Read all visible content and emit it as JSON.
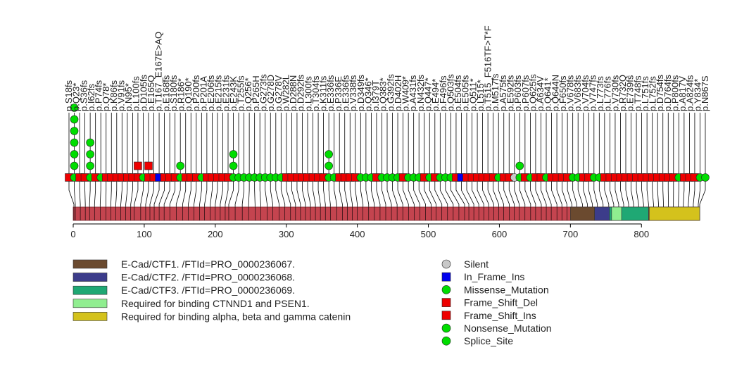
{
  "chart_data": {
    "type": "lollipop",
    "protein_length": 882,
    "x_ticks": [
      0,
      100,
      200,
      300,
      400,
      500,
      600,
      700,
      800
    ],
    "colors": {
      "backbone": "#c4444f",
      "Silent": "#c8c8c8",
      "In_Frame_Ins": "#0000ee",
      "Missense_Mutation": "#00dd00",
      "Frame_Shift_Del": "#ee0000",
      "Frame_Shift_Ins": "#ee0000",
      "Nonsense_Mutation": "#00dd00",
      "Splice_Site": "#00dd00"
    },
    "domains": [
      {
        "name": "E-Cad/CTF1. /FTId=PRO_0000236067.",
        "start": 700,
        "end": 734,
        "color": "#6b4a2f"
      },
      {
        "name": "E-Cad/CTF2. /FTId=PRO_0000236068.",
        "start": 734,
        "end": 755,
        "color": "#3c3c8a"
      },
      {
        "name": "E-Cad/CTF3. /FTId=PRO_0000236069.",
        "start": 755,
        "end": 810,
        "color": "#1fa874"
      },
      {
        "name": "Required for binding CTNND1 and PSEN1.",
        "start": 758,
        "end": 772,
        "color": "#90ee90"
      },
      {
        "name": "Required for binding alpha, beta and gamma catenin",
        "start": 811,
        "end": 882,
        "color": "#d4c21c"
      }
    ],
    "legend_types": [
      "Silent",
      "In_Frame_Ins",
      "Missense_Mutation",
      "Frame_Shift_Del",
      "Frame_Shift_Ins",
      "Nonsense_Mutation",
      "Splice_Site"
    ],
    "mutations": [
      {
        "label": "p.S18fs",
        "pos": 18
      },
      {
        "label": "p.Q23*",
        "pos": 23
      },
      {
        "label": "p.S36fs",
        "pos": 36
      },
      {
        "label": "p.I62fs",
        "pos": 62
      },
      {
        "label": "p.P74fs",
        "pos": 74
      },
      {
        "label": "p.Q78*",
        "pos": 78
      },
      {
        "label": "p.K86fs",
        "pos": 86
      },
      {
        "label": "p.V91fs",
        "pos": 91
      },
      {
        "label": "p.N95*",
        "pos": 95
      },
      {
        "label": "p.L100fs",
        "pos": 100
      },
      {
        "label": "p.D105fs",
        "pos": 105
      },
      {
        "label": "p.E165Q",
        "pos": 165
      },
      {
        "label": "p.T167_E167E>AQ",
        "pos": 167
      },
      {
        "label": "p.E168fs",
        "pos": 168
      },
      {
        "label": "p.S180fs",
        "pos": 180
      },
      {
        "label": "p.R186*",
        "pos": 186
      },
      {
        "label": "p.Q190*",
        "pos": 190
      },
      {
        "label": "p.P200fs",
        "pos": 200
      },
      {
        "label": "p.P201A",
        "pos": 201
      },
      {
        "label": "p.E206fs",
        "pos": 206
      },
      {
        "label": "p.E215fs",
        "pos": 215
      },
      {
        "label": "p.E231fs",
        "pos": 231
      },
      {
        "label": "p.E243K",
        "pos": 243
      },
      {
        "label": "p.T255fs",
        "pos": 255
      },
      {
        "label": "p.Q256*",
        "pos": 256
      },
      {
        "label": "p.P265H",
        "pos": 265
      },
      {
        "label": "p.G273fs",
        "pos": 273
      },
      {
        "label": "p.G278D",
        "pos": 278
      },
      {
        "label": "p.G278V",
        "pos": 278
      },
      {
        "label": "p.W282L",
        "pos": 282
      },
      {
        "label": "p.D288N",
        "pos": 288
      },
      {
        "label": "p.D292fs",
        "pos": 292
      },
      {
        "label": "p.L300fs",
        "pos": 300
      },
      {
        "label": "p.T304fs",
        "pos": 304
      },
      {
        "label": "p.K311fs",
        "pos": 311
      },
      {
        "label": "p.E336fs",
        "pos": 336
      },
      {
        "label": "p.P336E",
        "pos": 336
      },
      {
        "label": "p.E336fs",
        "pos": 336
      },
      {
        "label": "p.V338fs",
        "pos": 338
      },
      {
        "label": "p.D349fs",
        "pos": 349
      },
      {
        "label": "p.Q346*",
        "pos": 346
      },
      {
        "label": "p.I379T",
        "pos": 379
      },
      {
        "label": "p.Q383*",
        "pos": 383
      },
      {
        "label": "p.G392fs",
        "pos": 392
      },
      {
        "label": "p.D402H",
        "pos": 402
      },
      {
        "label": "p.W409*",
        "pos": 409
      },
      {
        "label": "p.A431fs",
        "pos": 431
      },
      {
        "label": "p.N432fs",
        "pos": 432
      },
      {
        "label": "p.Q447*",
        "pos": 447
      },
      {
        "label": "p.E494*",
        "pos": 494
      },
      {
        "label": "p.F496fs",
        "pos": 496
      },
      {
        "label": "p.Q503fs",
        "pos": 503
      },
      {
        "label": "p.E504fs",
        "pos": 504
      },
      {
        "label": "p.E505fs",
        "pos": 505
      },
      {
        "label": "p.Q511*",
        "pos": 511
      },
      {
        "label": "p.L515*",
        "pos": 515
      },
      {
        "label": "p.T515_F516TF>T*F",
        "pos": 516
      },
      {
        "label": "p.M517fs",
        "pos": 517
      },
      {
        "label": "p.A575fs",
        "pos": 575
      },
      {
        "label": "p.E592fs",
        "pos": 592
      },
      {
        "label": "p.P603fs",
        "pos": 603
      },
      {
        "label": "p.P607fs",
        "pos": 607
      },
      {
        "label": "p.Q625fs",
        "pos": 625
      },
      {
        "label": "p.A634V",
        "pos": 634
      },
      {
        "label": "p.Q641*",
        "pos": 641
      },
      {
        "label": "p.Q644N",
        "pos": 644
      },
      {
        "label": "p.F650fs",
        "pos": 650
      },
      {
        "label": "p.V678fs",
        "pos": 678
      },
      {
        "label": "p.V683fs",
        "pos": 683
      },
      {
        "label": "p.V704fs",
        "pos": 704
      },
      {
        "label": "p.V747fs",
        "pos": 747
      },
      {
        "label": "p.L773fs",
        "pos": 773
      },
      {
        "label": "p.L776fs",
        "pos": 776
      },
      {
        "label": "p.V730fs",
        "pos": 730
      },
      {
        "label": "p.R732Q",
        "pos": 732
      },
      {
        "label": "p.E739fs",
        "pos": 739
      },
      {
        "label": "p.T748fs",
        "pos": 748
      },
      {
        "label": "p.L751fs",
        "pos": 751
      },
      {
        "label": "p.L752fs",
        "pos": 752
      },
      {
        "label": "p.D754fs",
        "pos": 754
      },
      {
        "label": "p.D764fs",
        "pos": 764
      },
      {
        "label": "p.P800fs",
        "pos": 800
      },
      {
        "label": "p.A817V",
        "pos": 817
      },
      {
        "label": "p.A824fs",
        "pos": 824
      },
      {
        "label": "p.Y834*",
        "pos": 834
      },
      {
        "label": "p.N867S",
        "pos": 867
      }
    ],
    "lollipops": [
      {
        "pos": 1,
        "type": "Frame_Shift_Del",
        "count": 1
      },
      {
        "pos": 3,
        "type": "Missense_Mutation",
        "count": 7
      },
      {
        "pos": 10,
        "type": "Frame_Shift_Del",
        "count": 1
      },
      {
        "pos": 17,
        "type": "Frame_Shift_Del",
        "count": 1
      },
      {
        "pos": 23,
        "type": "Missense_Mutation",
        "count": 4
      },
      {
        "pos": 30,
        "type": "Frame_Shift_Del",
        "count": 1
      },
      {
        "pos": 38,
        "type": "Nonsense_Mutation",
        "count": 1
      },
      {
        "pos": 46,
        "type": "Frame_Shift_Del",
        "count": 1
      },
      {
        "pos": 53,
        "type": "Frame_Shift_Del",
        "count": 1
      },
      {
        "pos": 60,
        "type": "Frame_Shift_Del",
        "count": 1
      },
      {
        "pos": 67,
        "type": "Frame_Shift_Del",
        "count": 1
      },
      {
        "pos": 74,
        "type": "Frame_Shift_Del",
        "count": 1
      },
      {
        "pos": 81,
        "type": "Frame_Shift_Del",
        "count": 1
      },
      {
        "pos": 86,
        "type": "Frame_Shift_Ins",
        "count": 2
      },
      {
        "pos": 95,
        "type": "Missense_Mutation",
        "count": 1
      },
      {
        "pos": 102,
        "type": "Frame_Shift_Ins",
        "count": 2
      },
      {
        "pos": 108,
        "type": "Frame_Shift_Del",
        "count": 1
      },
      {
        "pos": 114,
        "type": "In_Frame_Ins",
        "count": 1
      },
      {
        "pos": 121,
        "type": "Frame_Shift_Del",
        "count": 1
      },
      {
        "pos": 128,
        "type": "Frame_Shift_Del",
        "count": 1
      },
      {
        "pos": 136,
        "type": "Frame_Shift_Del",
        "count": 1
      },
      {
        "pos": 145,
        "type": "Missense_Mutation",
        "count": 2
      },
      {
        "pos": 154,
        "type": "Frame_Shift_Del",
        "count": 1
      },
      {
        "pos": 162,
        "type": "Frame_Shift_Del",
        "count": 1
      },
      {
        "pos": 170,
        "type": "Frame_Shift_Del",
        "count": 1
      },
      {
        "pos": 178,
        "type": "Missense_Mutation",
        "count": 1
      },
      {
        "pos": 185,
        "type": "Frame_Shift_Del",
        "count": 1
      },
      {
        "pos": 193,
        "type": "Frame_Shift_Del",
        "count": 1
      },
      {
        "pos": 200,
        "type": "Frame_Shift_Del",
        "count": 1
      },
      {
        "pos": 207,
        "type": "Frame_Shift_Del",
        "count": 1
      },
      {
        "pos": 214,
        "type": "Frame_Shift_Del",
        "count": 1
      },
      {
        "pos": 219,
        "type": "Missense_Mutation",
        "count": 3
      },
      {
        "pos": 228,
        "type": "Missense_Mutation",
        "count": 1
      },
      {
        "pos": 238,
        "type": "Missense_Mutation",
        "count": 1
      },
      {
        "pos": 247,
        "type": "Missense_Mutation",
        "count": 1
      },
      {
        "pos": 256,
        "type": "Missense_Mutation",
        "count": 1
      },
      {
        "pos": 264,
        "type": "Missense_Mutation",
        "count": 1
      },
      {
        "pos": 273,
        "type": "Missense_Mutation",
        "count": 1
      },
      {
        "pos": 281,
        "type": "Missense_Mutation",
        "count": 1
      },
      {
        "pos": 290,
        "type": "Missense_Mutation",
        "count": 1
      },
      {
        "pos": 298,
        "type": "Missense_Mutation",
        "count": 1
      },
      {
        "pos": 306,
        "type": "Frame_Shift_Del",
        "count": 1
      },
      {
        "pos": 313,
        "type": "Frame_Shift_Del",
        "count": 1
      },
      {
        "pos": 320,
        "type": "Frame_Shift_Del",
        "count": 1
      },
      {
        "pos": 327,
        "type": "Frame_Shift_Del",
        "count": 1
      },
      {
        "pos": 334,
        "type": "Frame_Shift_Del",
        "count": 1
      },
      {
        "pos": 341,
        "type": "Frame_Shift_Del",
        "count": 1
      },
      {
        "pos": 348,
        "type": "Frame_Shift_Del",
        "count": 1
      },
      {
        "pos": 355,
        "type": "Frame_Shift_Del",
        "count": 1
      },
      {
        "pos": 362,
        "type": "Missense_Mutation",
        "count": 3
      },
      {
        "pos": 371,
        "type": "Missense_Mutation",
        "count": 1
      },
      {
        "pos": 379,
        "type": "Frame_Shift_Del",
        "count": 1
      },
      {
        "pos": 386,
        "type": "Frame_Shift_Del",
        "count": 1
      },
      {
        "pos": 393,
        "type": "Frame_Shift_Del",
        "count": 1
      },
      {
        "pos": 400,
        "type": "Frame_Shift_Del",
        "count": 1
      },
      {
        "pos": 408,
        "type": "Missense_Mutation",
        "count": 1
      },
      {
        "pos": 416,
        "type": "Missense_Mutation",
        "count": 1
      },
      {
        "pos": 424,
        "type": "Missense_Mutation",
        "count": 1
      },
      {
        "pos": 432,
        "type": "Frame_Shift_Del",
        "count": 1
      },
      {
        "pos": 440,
        "type": "Missense_Mutation",
        "count": 1
      },
      {
        "pos": 448,
        "type": "Missense_Mutation",
        "count": 1
      },
      {
        "pos": 456,
        "type": "Missense_Mutation",
        "count": 1
      },
      {
        "pos": 464,
        "type": "Missense_Mutation",
        "count": 1
      },
      {
        "pos": 472,
        "type": "Frame_Shift_Del",
        "count": 1
      },
      {
        "pos": 480,
        "type": "Missense_Mutation",
        "count": 1
      },
      {
        "pos": 488,
        "type": "Missense_Mutation",
        "count": 1
      },
      {
        "pos": 496,
        "type": "Missense_Mutation",
        "count": 1
      },
      {
        "pos": 504,
        "type": "Frame_Shift_Del",
        "count": 1
      },
      {
        "pos": 511,
        "type": "Missense_Mutation",
        "count": 1
      },
      {
        "pos": 519,
        "type": "Frame_Shift_Del",
        "count": 1
      },
      {
        "pos": 527,
        "type": "Missense_Mutation",
        "count": 1
      },
      {
        "pos": 535,
        "type": "Missense_Mutation",
        "count": 1
      },
      {
        "pos": 543,
        "type": "Missense_Mutation",
        "count": 1
      },
      {
        "pos": 551,
        "type": "Frame_Shift_Del",
        "count": 1
      },
      {
        "pos": 557,
        "type": "In_Frame_Ins",
        "count": 1
      },
      {
        "pos": 564,
        "type": "Frame_Shift_Del",
        "count": 1
      },
      {
        "pos": 571,
        "type": "Frame_Shift_Del",
        "count": 1
      },
      {
        "pos": 578,
        "type": "Frame_Shift_Del",
        "count": 1
      },
      {
        "pos": 585,
        "type": "Frame_Shift_Del",
        "count": 1
      },
      {
        "pos": 592,
        "type": "Frame_Shift_Del",
        "count": 1
      },
      {
        "pos": 599,
        "type": "Frame_Shift_Del",
        "count": 1
      },
      {
        "pos": 606,
        "type": "Missense_Mutation",
        "count": 1
      },
      {
        "pos": 614,
        "type": "Frame_Shift_Del",
        "count": 1
      },
      {
        "pos": 621,
        "type": "Frame_Shift_Del",
        "count": 1
      },
      {
        "pos": 628,
        "type": "Silent",
        "count": 1
      },
      {
        "pos": 636,
        "type": "Missense_Mutation",
        "count": 2
      },
      {
        "pos": 644,
        "type": "Frame_Shift_Del",
        "count": 1
      },
      {
        "pos": 651,
        "type": "Missense_Mutation",
        "count": 1
      },
      {
        "pos": 659,
        "type": "Frame_Shift_Del",
        "count": 1
      },
      {
        "pos": 666,
        "type": "Frame_Shift_Del",
        "count": 1
      },
      {
        "pos": 673,
        "type": "Missense_Mutation",
        "count": 1
      },
      {
        "pos": 681,
        "type": "Frame_Shift_Del",
        "count": 1
      },
      {
        "pos": 688,
        "type": "Frame_Shift_Del",
        "count": 1
      },
      {
        "pos": 695,
        "type": "Frame_Shift_Del",
        "count": 1
      },
      {
        "pos": 702,
        "type": "Frame_Shift_Del",
        "count": 1
      },
      {
        "pos": 709,
        "type": "Missense_Mutation",
        "count": 1
      },
      {
        "pos": 717,
        "type": "Missense_Mutation",
        "count": 1
      },
      {
        "pos": 724,
        "type": "Frame_Shift_Del",
        "count": 1
      },
      {
        "pos": 731,
        "type": "Frame_Shift_Del",
        "count": 1
      },
      {
        "pos": 738,
        "type": "Missense_Mutation",
        "count": 1
      },
      {
        "pos": 746,
        "type": "Missense_Mutation",
        "count": 1
      },
      {
        "pos": 754,
        "type": "Frame_Shift_Del",
        "count": 1
      },
      {
        "pos": 761,
        "type": "Frame_Shift_Del",
        "count": 1
      },
      {
        "pos": 768,
        "type": "Frame_Shift_Del",
        "count": 1
      },
      {
        "pos": 775,
        "type": "Frame_Shift_Del",
        "count": 1
      },
      {
        "pos": 782,
        "type": "Frame_Shift_Del",
        "count": 1
      },
      {
        "pos": 789,
        "type": "Frame_Shift_Del",
        "count": 1
      },
      {
        "pos": 796,
        "type": "Frame_Shift_Del",
        "count": 1
      },
      {
        "pos": 803,
        "type": "Frame_Shift_Del",
        "count": 1
      },
      {
        "pos": 810,
        "type": "Frame_Shift_Del",
        "count": 1
      },
      {
        "pos": 817,
        "type": "Frame_Shift_Del",
        "count": 1
      },
      {
        "pos": 824,
        "type": "Frame_Shift_Del",
        "count": 1
      },
      {
        "pos": 831,
        "type": "Frame_Shift_Del",
        "count": 1
      },
      {
        "pos": 838,
        "type": "Frame_Shift_Del",
        "count": 1
      },
      {
        "pos": 845,
        "type": "Frame_Shift_Del",
        "count": 1
      },
      {
        "pos": 852,
        "type": "Missense_Mutation",
        "count": 1
      },
      {
        "pos": 859,
        "type": "Frame_Shift_Del",
        "count": 1
      },
      {
        "pos": 866,
        "type": "Frame_Shift_Del",
        "count": 1
      },
      {
        "pos": 873,
        "type": "Frame_Shift_Del",
        "count": 1
      },
      {
        "pos": 880,
        "type": "Missense_Mutation",
        "count": 1
      },
      {
        "pos": 887,
        "type": "Missense_Mutation",
        "count": 1
      }
    ]
  }
}
